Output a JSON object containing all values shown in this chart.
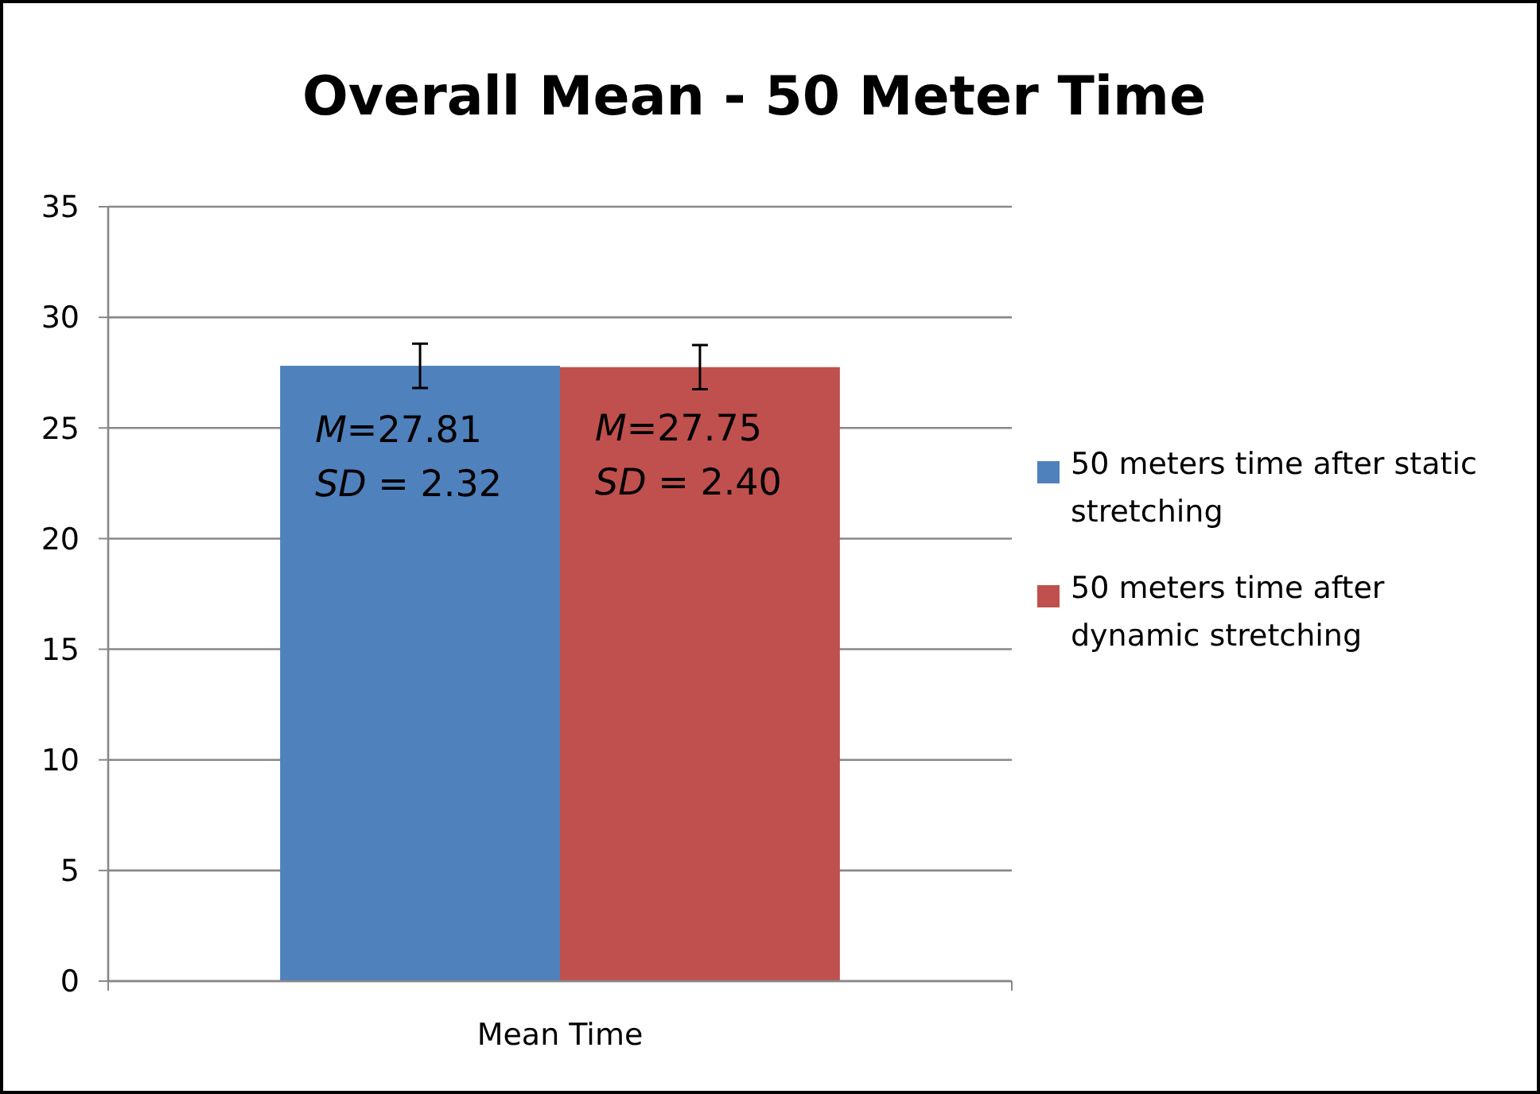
{
  "chart_data": {
    "type": "bar",
    "title": "Overall Mean - 50 Meter Time",
    "categories": [
      "Mean Time"
    ],
    "series": [
      {
        "name": "50 meters time after static stretching",
        "color": "#4f81bd",
        "values": [
          27.81
        ],
        "errors": [
          1.0
        ]
      },
      {
        "name": "50 meters time after dynamic stretching",
        "color": "#c0504d",
        "values": [
          27.75
        ],
        "errors": [
          1.0
        ]
      }
    ],
    "ylim": [
      0,
      35
    ],
    "yticks": [
      0,
      5,
      10,
      15,
      20,
      25,
      30,
      35
    ],
    "grid": "y",
    "legend": "right",
    "annotations": [
      "M=27.81\nSD = 2.32",
      "M=27.75\nSD = 2.40"
    ]
  }
}
